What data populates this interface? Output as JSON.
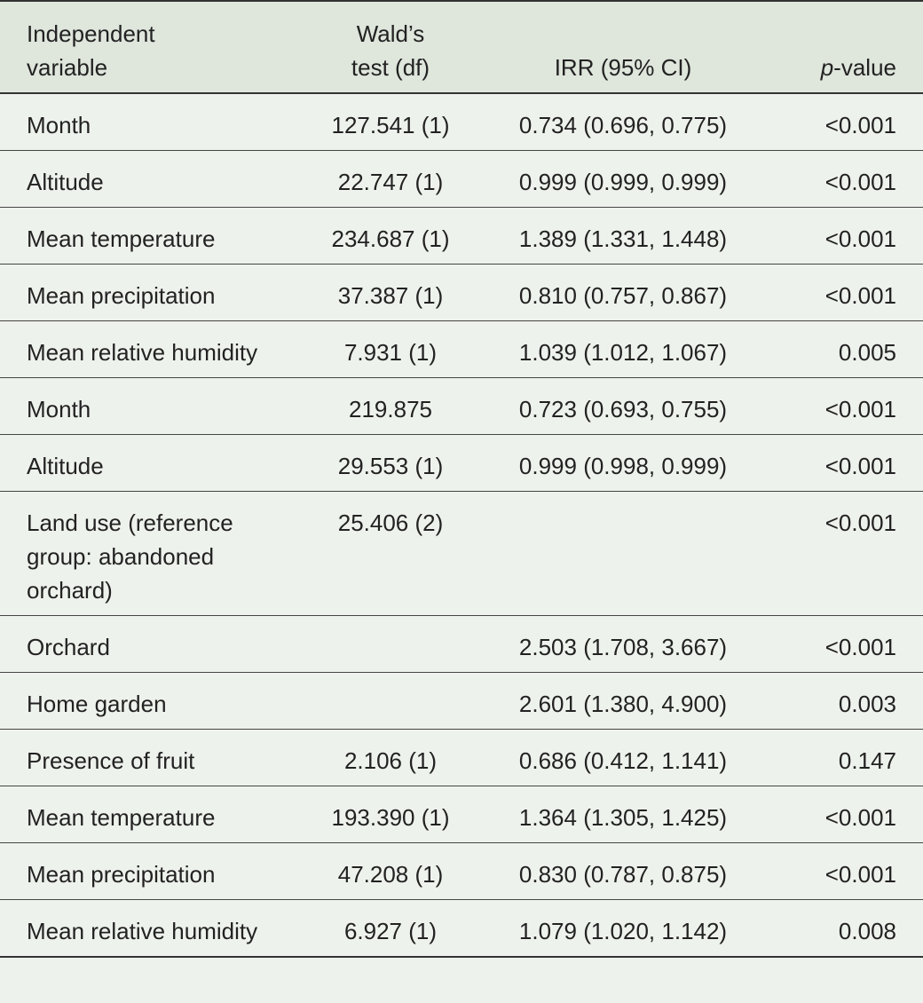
{
  "table": {
    "header": {
      "variable": "Independent variable",
      "wald": "Wald’s test (df)",
      "irr": "IRR (95% CI)",
      "p": {
        "italic": "p",
        "rest": "-value"
      }
    },
    "rows": [
      {
        "variable": "Month",
        "wald": "127.541 (1)",
        "irr": "0.734 (0.696, 0.775)",
        "p": "<0.001"
      },
      {
        "variable": "Altitude",
        "wald": "22.747 (1)",
        "irr": "0.999 (0.999, 0.999)",
        "p": "<0.001"
      },
      {
        "variable": "Mean temperature",
        "wald": "234.687 (1)",
        "irr": "1.389 (1.331, 1.448)",
        "p": "<0.001"
      },
      {
        "variable": "Mean precipitation",
        "wald": "37.387 (1)",
        "irr": "0.810 (0.757, 0.867)",
        "p": "<0.001"
      },
      {
        "variable": "Mean relative humidity",
        "wald": "7.931 (1)",
        "irr": "1.039 (1.012, 1.067)",
        "p": "0.005"
      },
      {
        "variable": "Month",
        "wald": "219.875",
        "irr": "0.723 (0.693, 0.755)",
        "p": "<0.001"
      },
      {
        "variable": "Altitude",
        "wald": "29.553 (1)",
        "irr": "0.999 (0.998, 0.999)",
        "p": "<0.001"
      },
      {
        "variable": "Land use (reference group: abandoned orchard)",
        "wald": "25.406 (2)",
        "p": "<0.001"
      },
      {
        "variable": "Orchard",
        "irr": "2.503 (1.708, 3.667)",
        "p": "<0.001"
      },
      {
        "variable": "Home garden",
        "irr": "2.601 (1.380, 4.900)",
        "p": "0.003"
      },
      {
        "variable": "Presence of fruit",
        "wald": "2.106 (1)",
        "irr": "0.686 (0.412, 1.141)",
        "p": "0.147"
      },
      {
        "variable": "Mean temperature",
        "wald": "193.390 (1)",
        "irr": "1.364 (1.305, 1.425)",
        "p": "<0.001"
      },
      {
        "variable": "Mean precipitation",
        "wald": "47.208 (1)",
        "irr": "0.830 (0.787, 0.875)",
        "p": "<0.001"
      },
      {
        "variable": "Mean relative humidity",
        "wald": "6.927 (1)",
        "irr": "1.079 (1.020, 1.142)",
        "p": "0.008"
      }
    ]
  }
}
